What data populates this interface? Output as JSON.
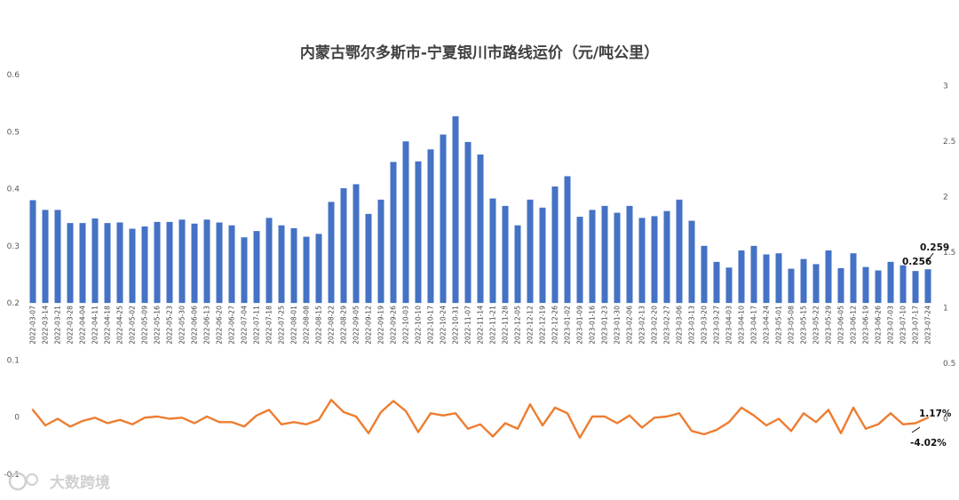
{
  "chart_data": {
    "type": "bar+line",
    "title": "内蒙古鄂尔多斯市-宁夏银川市路线运价（元/吨公里）",
    "left_axis": {
      "ticks": [
        "0.6",
        "0.5",
        "0.4",
        "0.3",
        "0.2",
        "0.1",
        "0",
        "-0.1"
      ],
      "ylim": [
        -0.1,
        0.6
      ]
    },
    "right_axis": {
      "ticks": [
        "3",
        "2.5",
        "2",
        "1.5",
        "1",
        "0.5",
        "0"
      ],
      "ylim": [
        -0.5,
        3.1
      ]
    },
    "categories": [
      "2022-03-07",
      "2022-03-14",
      "2022-03-21",
      "2022-03-28",
      "2022-04-04",
      "2022-04-11",
      "2022-04-18",
      "2022-04-25",
      "2022-05-02",
      "2022-05-09",
      "2022-05-16",
      "2022-05-23",
      "2022-05-30",
      "2022-06-06",
      "2022-06-13",
      "2022-06-20",
      "2022-06-27",
      "2022-07-04",
      "2022-07-11",
      "2022-07-18",
      "2022-07-25",
      "2022-08-01",
      "2022-08-08",
      "2022-08-15",
      "2022-08-22",
      "2022-08-29",
      "2022-09-05",
      "2022-09-12",
      "2022-09-19",
      "2022-09-26",
      "2022-10-03",
      "2022-10-10",
      "2022-10-17",
      "2022-10-24",
      "2022-10-31",
      "2022-11-07",
      "2022-11-14",
      "2022-11-21",
      "2022-11-28",
      "2022-12-05",
      "2022-12-12",
      "2022-12-19",
      "2022-12-26",
      "2023-01-02",
      "2023-01-09",
      "2023-01-16",
      "2023-01-23",
      "2023-01-30",
      "2023-02-06",
      "2023-02-13",
      "2023-02-20",
      "2023-02-27",
      "2023-03-06",
      "2023-03-13",
      "2023-03-20",
      "2023-03-27",
      "2023-04-03",
      "2023-04-10",
      "2023-04-17",
      "2023-04-24",
      "2023-05-01",
      "2023-05-08",
      "2023-05-15",
      "2023-05-22",
      "2023-05-29",
      "2023-06-05",
      "2023-06-12",
      "2023-06-19",
      "2023-06-26",
      "2023-07-03",
      "2023-07-10",
      "2023-07-17",
      "2023-07-24"
    ],
    "series": [
      {
        "role": "bars-left-axis",
        "color": "#4472C4",
        "values": [
          0.38,
          0.363,
          0.363,
          0.34,
          0.34,
          0.348,
          0.34,
          0.341,
          0.33,
          0.334,
          0.342,
          0.342,
          0.346,
          0.339,
          0.346,
          0.341,
          0.336,
          0.315,
          0.326,
          0.349,
          0.336,
          0.331,
          0.316,
          0.321,
          0.377,
          0.401,
          0.408,
          0.356,
          0.381,
          0.447,
          0.483,
          0.448,
          0.469,
          0.495,
          0.527,
          0.482,
          0.46,
          0.383,
          0.37,
          0.336,
          0.381,
          0.367,
          0.404,
          0.422,
          0.351,
          0.363,
          0.37,
          0.358,
          0.37,
          0.349,
          0.352,
          0.361,
          0.381,
          0.344,
          0.3,
          0.272,
          0.262,
          0.292,
          0.3,
          0.285,
          0.287,
          0.26,
          0.277,
          0.268,
          0.292,
          0.261,
          0.287,
          0.263,
          0.257,
          0.272,
          0.266,
          0.256,
          0.259
        ]
      },
      {
        "role": "line-right-axis",
        "color": "#ED7D31",
        "values": [
          0.08,
          -0.06,
          0.0,
          -0.07,
          -0.02,
          0.01,
          -0.04,
          -0.01,
          -0.05,
          0.01,
          0.02,
          0.0,
          0.01,
          -0.04,
          0.02,
          -0.03,
          -0.03,
          -0.07,
          0.03,
          0.08,
          -0.05,
          -0.03,
          -0.05,
          -0.01,
          0.17,
          0.06,
          0.02,
          -0.13,
          0.06,
          0.16,
          0.07,
          -0.12,
          0.05,
          0.03,
          0.05,
          -0.09,
          -0.05,
          -0.16,
          -0.04,
          -0.09,
          0.13,
          -0.06,
          0.1,
          0.05,
          -0.17,
          0.02,
          0.02,
          -0.04,
          0.03,
          -0.08,
          0.01,
          0.02,
          0.05,
          -0.11,
          -0.14,
          -0.1,
          -0.03,
          0.1,
          0.03,
          -0.06,
          0.0,
          -0.11,
          0.05,
          -0.03,
          0.08,
          -0.13,
          0.1,
          -0.09,
          -0.05,
          0.05,
          -0.05,
          -0.04,
          0.01
        ]
      }
    ],
    "annotations": {
      "bar_last": "0.259",
      "bar_prev": "0.256",
      "line_last": "1.17%",
      "line_prev": "-4.02%"
    },
    "watermark": "大数跨境",
    "grid": false,
    "legend": "none"
  }
}
